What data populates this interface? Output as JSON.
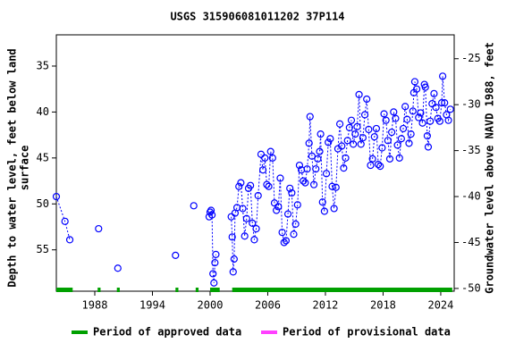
{
  "chart_data": {
    "type": "scatter",
    "title": "USGS 315906081011202 37P114",
    "ylabel": [
      "Depth to water level, feet below land",
      "surface"
    ],
    "y2label": "Groundwater level above NAVD 1988, feet",
    "xlim": [
      1984.0,
      2025.4
    ],
    "xticks": [
      1988,
      1994,
      2000,
      2006,
      2012,
      2018,
      2024
    ],
    "ylim": [
      59.5,
      31.6
    ],
    "yticks": [
      35,
      40,
      45,
      50,
      55
    ],
    "y2lim": [
      -50.3,
      -22.4
    ],
    "y2ticks": [
      -50,
      -45,
      -40,
      -35,
      -30,
      -25
    ],
    "series": [
      {
        "name": "Depth to water",
        "color": "#0000ff",
        "x": [
          1984.0,
          1984.9,
          1985.4,
          null,
          1988.4,
          null,
          1990.4,
          null,
          1996.4,
          null,
          1998.3,
          null,
          1999.9,
          2000.0,
          2000.1,
          2000.2,
          2000.3,
          2000.4,
          2000.5,
          2000.6,
          null,
          2002.2,
          2002.3,
          2002.4,
          2002.5,
          2002.6,
          2002.8,
          2003.0,
          2003.2,
          2003.4,
          2003.6,
          2003.8,
          2004.0,
          2004.2,
          2004.4,
          2004.6,
          2004.8,
          2005.0,
          2005.3,
          2005.5,
          2005.7,
          2005.9,
          2006.1,
          2006.3,
          2006.5,
          2006.7,
          2006.9,
          2007.1,
          2007.3,
          2007.5,
          2007.7,
          2007.9,
          2008.1,
          2008.3,
          2008.5,
          2008.7,
          2008.9,
          2009.1,
          2009.3,
          2009.5,
          2009.7,
          2009.9,
          2010.1,
          2010.3,
          2010.4,
          2010.6,
          2010.8,
          2011.0,
          2011.2,
          2011.4,
          2011.5,
          2011.7,
          2011.9,
          2012.1,
          2012.3,
          2012.5,
          2012.7,
          2012.9,
          2013.1,
          2013.3,
          2013.5,
          2013.7,
          2013.9,
          2014.1,
          2014.3,
          2014.5,
          2014.7,
          2014.9,
          2015.1,
          2015.3,
          2015.5,
          2015.7,
          2015.9,
          2016.1,
          2016.3,
          2016.5,
          2016.7,
          2016.9,
          2017.1,
          2017.3,
          2017.5,
          2017.7,
          2017.9,
          2018.1,
          2018.3,
          2018.5,
          2018.7,
          2018.9,
          2019.1,
          2019.3,
          2019.5,
          2019.7,
          2019.9,
          2020.1,
          2020.3,
          2020.5,
          2020.7,
          2020.9,
          2021.1,
          2021.2,
          2021.3,
          2021.5,
          2021.7,
          2021.9,
          2022.1,
          2022.3,
          2022.4,
          2022.6,
          2022.7,
          2022.9,
          2023.1,
          2023.3,
          2023.5,
          2023.7,
          2023.9,
          2024.1,
          2024.2,
          2024.4,
          2024.6,
          2024.8,
          2025.0
        ],
        "values": [
          49.2,
          51.9,
          53.9,
          null,
          52.7,
          null,
          57.0,
          null,
          55.6,
          null,
          50.2,
          null,
          51.4,
          50.9,
          50.7,
          51.2,
          57.6,
          58.6,
          56.4,
          55.5,
          null,
          51.4,
          53.6,
          57.4,
          56.0,
          51.0,
          50.4,
          48.1,
          47.7,
          50.5,
          53.5,
          51.6,
          48.3,
          48.0,
          52.1,
          53.9,
          52.7,
          49.1,
          44.6,
          46.3,
          45.0,
          47.9,
          48.1,
          44.3,
          45.0,
          49.9,
          50.7,
          50.3,
          47.2,
          53.1,
          54.2,
          54.0,
          51.1,
          48.3,
          48.8,
          53.3,
          52.2,
          50.1,
          45.8,
          46.3,
          47.5,
          47.7,
          46.2,
          43.4,
          40.5,
          44.8,
          47.9,
          46.2,
          45.1,
          44.3,
          42.4,
          49.8,
          50.8,
          46.7,
          43.3,
          42.9,
          48.1,
          50.5,
          48.2,
          44.0,
          41.3,
          43.7,
          46.1,
          45.0,
          43.1,
          41.7,
          40.9,
          43.5,
          42.4,
          41.6,
          38.1,
          43.5,
          42.8,
          40.3,
          38.6,
          41.9,
          45.8,
          45.1,
          42.7,
          41.8,
          45.7,
          45.9,
          43.9,
          40.2,
          40.9,
          43.1,
          45.1,
          42.2,
          40.0,
          40.7,
          43.6,
          45.0,
          42.9,
          41.8,
          39.4,
          40.8,
          43.4,
          42.4,
          39.9,
          37.9,
          36.7,
          37.5,
          40.6,
          40.1,
          41.2,
          37.0,
          37.3,
          42.6,
          43.8,
          41.0,
          39.1,
          38.0,
          39.5,
          40.7,
          41.0,
          39.0,
          36.1,
          39.0,
          40.3,
          40.9,
          39.7
        ]
      }
    ],
    "approved_periods": [
      [
        1984.0,
        1985.7
      ],
      [
        1988.3,
        1988.6
      ],
      [
        1990.3,
        1990.6
      ],
      [
        1996.4,
        1996.7
      ],
      [
        1998.5,
        1998.8
      ],
      [
        2000.0,
        2001.0
      ],
      [
        2002.3,
        2025.2
      ]
    ],
    "legend": [
      {
        "name": "Period of approved data",
        "color": "#00a000"
      },
      {
        "name": "Period of provisional data",
        "color": "#ff40ff"
      }
    ]
  }
}
